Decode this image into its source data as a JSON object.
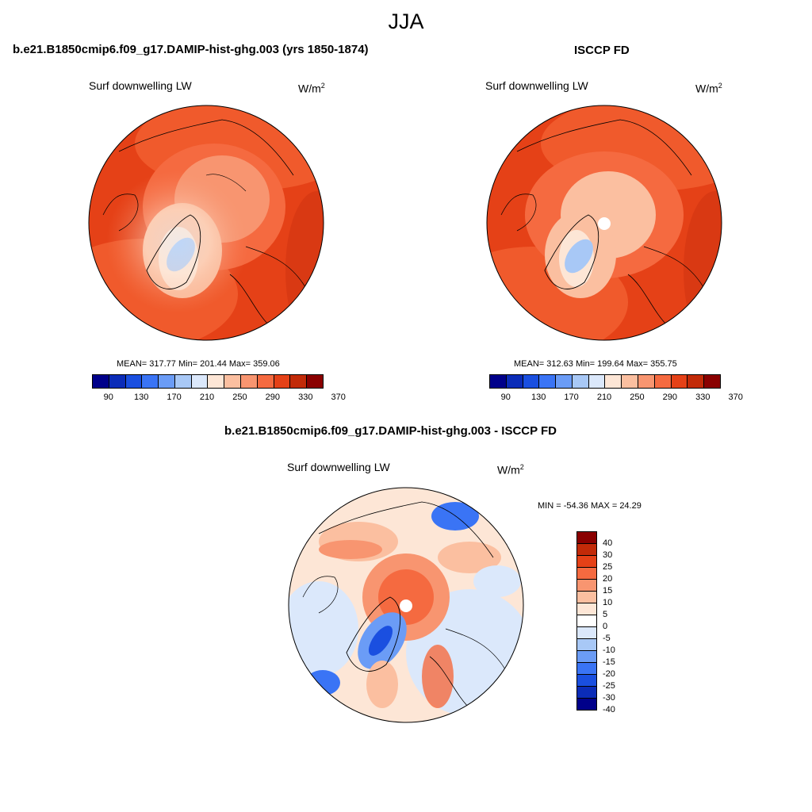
{
  "main_title": "JJA",
  "panels": [
    {
      "title": "b.e21.B1850cmip6.f09_g17.DAMIP-hist-ghg.003 (yrs 1850-1874)",
      "variable": "Surf downwelling LW",
      "units": "W/m",
      "units_exp": "2",
      "stats": "MEAN= 317.77  Min= 201.44  Max= 359.06"
    },
    {
      "title": "ISCCP FD",
      "variable": "Surf downwelling LW",
      "units": "W/m",
      "units_exp": "2",
      "stats": "MEAN= 312.63  Min= 199.64  Max= 355.75"
    },
    {
      "title": "b.e21.B1850cmip6.f09_g17.DAMIP-hist-ghg.003 - ISCCP FD",
      "variable": "Surf downwelling LW",
      "units": "W/m",
      "units_exp": "2",
      "stats": "MIN = -54.36 MAX =  24.29"
    }
  ],
  "colorbar_abs": {
    "colors": [
      "#00008a",
      "#0b2cb8",
      "#1a4fe0",
      "#3a74f5",
      "#6b9cf6",
      "#a8c8f6",
      "#dbe8fb",
      "#fde6d6",
      "#fbbfa0",
      "#f89570",
      "#f56a40",
      "#e54117",
      "#c22a08",
      "#8a0000"
    ],
    "tick_labels": [
      "90",
      "130",
      "170",
      "210",
      "250",
      "290",
      "330",
      "370"
    ]
  },
  "colorbar_diff": {
    "colors": [
      "#8a0000",
      "#c22a08",
      "#e54117",
      "#f56a40",
      "#f89570",
      "#fbbfa0",
      "#fde6d6",
      "#ffffff",
      "#dbe8fb",
      "#a8c8f6",
      "#6b9cf6",
      "#3a74f5",
      "#1a4fe0",
      "#0b2cb8",
      "#00008a"
    ],
    "tick_labels": [
      "40",
      "30",
      "25",
      "20",
      "15",
      "10",
      "5",
      "0",
      "-5",
      "-10",
      "-15",
      "-20",
      "-25",
      "-30",
      "-40"
    ]
  }
}
